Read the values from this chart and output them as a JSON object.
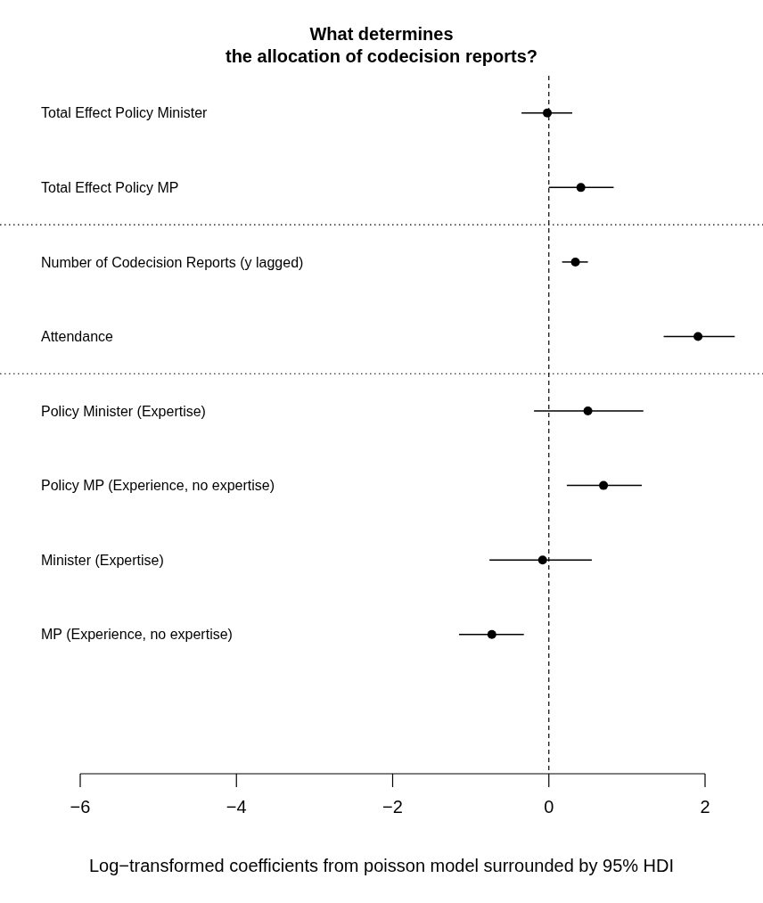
{
  "chart_data": {
    "type": "scatter",
    "title": "What determines\nthe allocation of codecision reports?",
    "xlabel": "Log−transformed coefficients from poisson model surrounded by 95% HDI",
    "orientation": "horizontal",
    "categories": [
      "Total Effect Policy Minister",
      "Total Effect Policy MP",
      "Number of Codecision Reports (y lagged)",
      "Attendance",
      "Policy Minister (Expertise)",
      "Policy MP (Experience, no expertise)",
      "Minister (Expertise)",
      "MP (Experience, no expertise)"
    ],
    "series": [
      {
        "color": "#000000",
        "values": [
          -0.02,
          0.41,
          0.34,
          1.91,
          0.5,
          0.7,
          -0.08,
          -0.73
        ],
        "errors": [
          [
            -0.35,
            0.3
          ],
          [
            0.0,
            0.83
          ],
          [
            0.17,
            0.5
          ],
          [
            1.47,
            2.38
          ],
          [
            -0.19,
            1.21
          ],
          [
            0.23,
            1.19
          ],
          [
            -0.76,
            0.55
          ],
          [
            -1.15,
            -0.32
          ]
        ]
      }
    ],
    "xlim": [
      -6,
      2
    ],
    "xticks": [
      {
        "value": -6,
        "label": "−6"
      },
      {
        "value": -4,
        "label": "−4"
      },
      {
        "value": -2,
        "label": "−2"
      },
      0,
      2
    ],
    "ref_lines": [
      {
        "axis": "x",
        "value": 0,
        "line_style": "dashed",
        "color": "#000000"
      }
    ],
    "marker": "circle",
    "grid": false
  }
}
